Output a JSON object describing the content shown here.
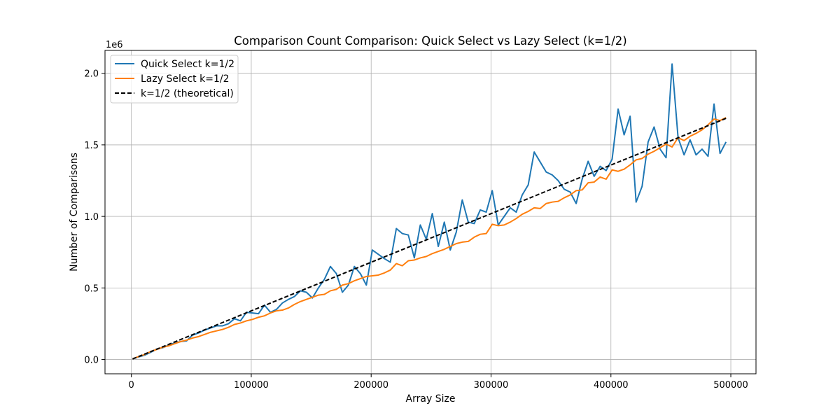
{
  "chart_data": {
    "type": "line",
    "title": "Comparison Count Comparison: Quick Select vs Lazy Select (k=1/2)",
    "xlabel": "Array Size",
    "ylabel": "Number of Comparisons",
    "y_offset_text": "1e6",
    "xlim": [
      -22000,
      521000
    ],
    "ylim": [
      -100000,
      2160000
    ],
    "y_scale_factor": 1000000,
    "xticks": [
      0,
      100000,
      200000,
      300000,
      400000,
      500000
    ],
    "xtick_labels": [
      "0",
      "100000",
      "200000",
      "300000",
      "400000",
      "500000"
    ],
    "yticks": [
      0,
      500000,
      1000000,
      1500000,
      2000000
    ],
    "ytick_labels": [
      "0.0",
      "0.5",
      "1.0",
      "1.5",
      "2.0"
    ],
    "grid": true,
    "legend_position": "upper-left",
    "series": [
      {
        "name": "Quick Select k=1/2",
        "color": "#1f77b4",
        "style": "solid",
        "x": [
          1000,
          6000,
          11000,
          16000,
          21000,
          26000,
          31000,
          36000,
          41000,
          46000,
          51000,
          56000,
          61000,
          66000,
          71000,
          76000,
          81000,
          86000,
          91000,
          96000,
          101000,
          106000,
          111000,
          116000,
          121000,
          126000,
          131000,
          136000,
          141000,
          146000,
          151000,
          156000,
          161000,
          166000,
          171000,
          176000,
          181000,
          186000,
          191000,
          196000,
          201000,
          206000,
          211000,
          216000,
          221000,
          226000,
          231000,
          236000,
          241000,
          246000,
          251000,
          256000,
          261000,
          266000,
          271000,
          276000,
          281000,
          286000,
          291000,
          296000,
          301000,
          306000,
          311000,
          316000,
          321000,
          326000,
          331000,
          336000,
          341000,
          346000,
          351000,
          356000,
          361000,
          366000,
          371000,
          376000,
          381000,
          386000,
          391000,
          396000,
          401000,
          406000,
          411000,
          416000,
          421000,
          426000,
          431000,
          436000,
          441000,
          446000,
          451000,
          456000,
          461000,
          466000,
          471000,
          476000,
          481000,
          486000,
          491000,
          496000
        ],
        "y": [
          5000,
          18000,
          30000,
          50000,
          72000,
          82000,
          100000,
          115000,
          125000,
          130000,
          170000,
          185000,
          205000,
          220000,
          235000,
          235000,
          250000,
          285000,
          270000,
          330000,
          325000,
          320000,
          380000,
          330000,
          350000,
          395000,
          420000,
          440000,
          480000,
          470000,
          430000,
          500000,
          560000,
          650000,
          600000,
          470000,
          520000,
          650000,
          600000,
          520000,
          765000,
          735000,
          705000,
          680000,
          915000,
          880000,
          870000,
          710000,
          940000,
          840000,
          1020000,
          790000,
          960000,
          765000,
          890000,
          1115000,
          960000,
          950000,
          1045000,
          1030000,
          1180000,
          940000,
          1000000,
          1060000,
          1030000,
          1150000,
          1220000,
          1450000,
          1380000,
          1310000,
          1290000,
          1250000,
          1190000,
          1170000,
          1090000,
          1260000,
          1385000,
          1280000,
          1350000,
          1320000,
          1400000,
          1750000,
          1570000,
          1700000,
          1100000,
          1210000,
          1520000,
          1625000,
          1470000,
          1410000,
          2065000,
          1550000,
          1430000,
          1535000,
          1430000,
          1470000,
          1420000,
          1785000,
          1440000,
          1520000
        ]
      },
      {
        "name": "Lazy Select k=1/2",
        "color": "#ff7f0e",
        "style": "solid",
        "x": [
          1000,
          6000,
          11000,
          16000,
          21000,
          26000,
          31000,
          36000,
          41000,
          46000,
          51000,
          56000,
          61000,
          66000,
          71000,
          76000,
          81000,
          86000,
          91000,
          96000,
          101000,
          106000,
          111000,
          116000,
          121000,
          126000,
          131000,
          136000,
          141000,
          146000,
          151000,
          156000,
          161000,
          166000,
          171000,
          176000,
          181000,
          186000,
          191000,
          196000,
          201000,
          206000,
          211000,
          216000,
          221000,
          226000,
          231000,
          236000,
          241000,
          246000,
          251000,
          256000,
          261000,
          266000,
          271000,
          276000,
          281000,
          286000,
          291000,
          296000,
          301000,
          306000,
          311000,
          316000,
          321000,
          326000,
          331000,
          336000,
          341000,
          346000,
          351000,
          356000,
          361000,
          366000,
          371000,
          376000,
          381000,
          386000,
          391000,
          396000,
          401000,
          406000,
          411000,
          416000,
          421000,
          426000,
          431000,
          436000,
          441000,
          446000,
          451000,
          456000,
          461000,
          466000,
          471000,
          476000,
          481000,
          486000,
          491000,
          496000
        ],
        "y": [
          5000,
          20000,
          35000,
          55000,
          70000,
          85000,
          95000,
          110000,
          125000,
          135000,
          150000,
          160000,
          175000,
          190000,
          200000,
          210000,
          225000,
          245000,
          255000,
          270000,
          280000,
          295000,
          305000,
          325000,
          340000,
          345000,
          360000,
          385000,
          405000,
          420000,
          435000,
          450000,
          455000,
          480000,
          490000,
          520000,
          530000,
          550000,
          565000,
          580000,
          585000,
          590000,
          605000,
          625000,
          670000,
          655000,
          690000,
          695000,
          710000,
          720000,
          740000,
          755000,
          770000,
          790000,
          810000,
          820000,
          825000,
          855000,
          875000,
          880000,
          945000,
          935000,
          940000,
          960000,
          985000,
          1015000,
          1035000,
          1060000,
          1055000,
          1090000,
          1100000,
          1105000,
          1130000,
          1150000,
          1180000,
          1185000,
          1235000,
          1240000,
          1275000,
          1260000,
          1325000,
          1315000,
          1330000,
          1360000,
          1395000,
          1405000,
          1435000,
          1455000,
          1480000,
          1505000,
          1485000,
          1550000,
          1530000,
          1560000,
          1580000,
          1605000,
          1640000,
          1680000,
          1670000,
          1690000
        ]
      },
      {
        "name": "k=1/2 (theoretical)",
        "color": "#000000",
        "style": "dashed",
        "x": [
          1000,
          496000
        ],
        "y": [
          3400,
          1685000
        ]
      }
    ]
  }
}
